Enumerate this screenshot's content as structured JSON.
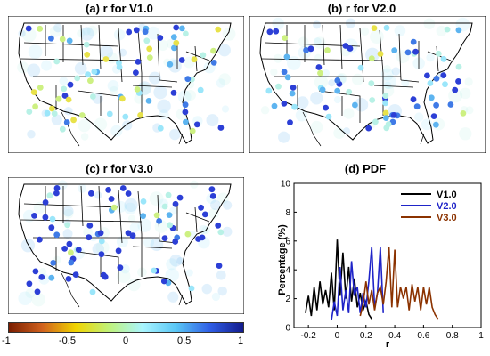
{
  "panels": [
    {
      "title": "(a) r for V1.0"
    },
    {
      "title": "(b) r for V2.0"
    },
    {
      "title": "(c) r for V3.0"
    },
    {
      "title": "(d) PDF"
    }
  ],
  "colorbar": {
    "ticks": [
      "-1",
      "-0.5",
      "0",
      "0.5",
      "1"
    ],
    "stops": [
      "#7a1d00",
      "#d1621e",
      "#f0d400",
      "#bff27a",
      "#a9f5ff",
      "#59c6f5",
      "#2f5ee6",
      "#131b8c"
    ]
  },
  "chart_data": {
    "type": "line",
    "title": "(d) PDF",
    "xlabel": "r",
    "ylabel": "Percentage (%)",
    "xlim": [
      -0.3,
      1.0
    ],
    "ylim": [
      0,
      10
    ],
    "xticks": [
      "-0.2",
      "0",
      "0.2",
      "0.4",
      "0.6",
      "0.8",
      "1"
    ],
    "yticks": [
      "0",
      "2",
      "4",
      "6",
      "8",
      "10"
    ],
    "legend_position": "top-right",
    "series": [
      {
        "name": "V1.0",
        "color": "#000000",
        "x": [
          -0.22,
          -0.2,
          -0.18,
          -0.16,
          -0.14,
          -0.12,
          -0.1,
          -0.08,
          -0.06,
          -0.04,
          -0.02,
          0.0,
          0.02,
          0.04,
          0.06,
          0.08,
          0.1,
          0.12,
          0.14,
          0.16,
          0.18,
          0.2,
          0.22,
          0.24
        ],
        "y": [
          1.0,
          2.2,
          0.8,
          2.8,
          1.2,
          3.2,
          1.6,
          2.6,
          1.4,
          3.8,
          1.2,
          6.1,
          2.2,
          5.2,
          2.0,
          4.2,
          1.8,
          3.4,
          1.4,
          2.4,
          1.2,
          1.8,
          0.9,
          0.6
        ]
      },
      {
        "name": "V2.0",
        "color": "#1f24c8",
        "x": [
          -0.04,
          -0.02,
          0.0,
          0.02,
          0.04,
          0.06,
          0.08,
          0.1,
          0.12,
          0.14,
          0.16,
          0.18,
          0.2,
          0.22,
          0.24,
          0.26,
          0.28,
          0.3,
          0.32
        ],
        "y": [
          0.5,
          1.8,
          0.8,
          4.2,
          1.2,
          2.6,
          1.0,
          4.6,
          2.2,
          2.8,
          1.0,
          2.4,
          1.4,
          3.2,
          5.6,
          1.4,
          2.4,
          5.6,
          1.0
        ]
      },
      {
        "name": "V3.0",
        "color": "#8b3200",
        "x": [
          0.16,
          0.18,
          0.2,
          0.22,
          0.24,
          0.26,
          0.28,
          0.3,
          0.32,
          0.34,
          0.36,
          0.38,
          0.4,
          0.42,
          0.44,
          0.46,
          0.48,
          0.5,
          0.52,
          0.54,
          0.56,
          0.58,
          0.6,
          0.62,
          0.64,
          0.66,
          0.68,
          0.7
        ],
        "y": [
          0.8,
          1.6,
          3.2,
          1.6,
          2.6,
          1.2,
          2.4,
          2.8,
          1.6,
          3.2,
          5.6,
          1.4,
          5.4,
          1.4,
          2.8,
          2.0,
          2.8,
          1.2,
          3.0,
          1.8,
          2.8,
          1.2,
          2.8,
          1.6,
          2.8,
          1.4,
          0.9,
          0.6
        ]
      }
    ]
  }
}
